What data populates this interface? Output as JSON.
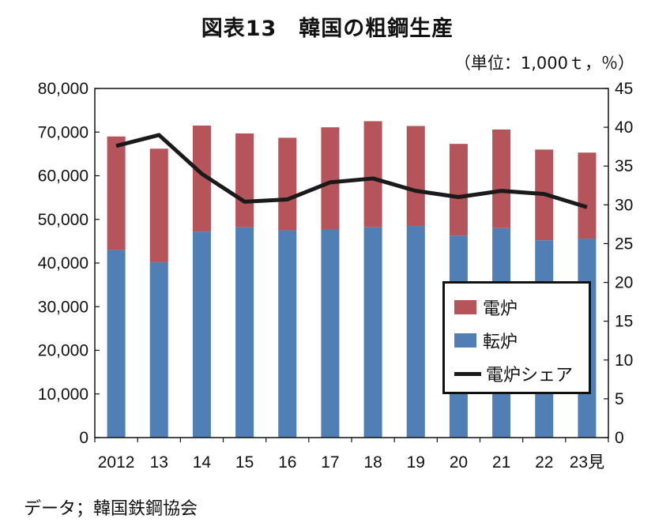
{
  "title": "図表13　韓国の粗鋼生産",
  "unit": "（単位：1,000ｔ，％）",
  "source": "データ；韓国鉄鋼協会",
  "legend": {
    "electric": "電炉",
    "converter": "転炉",
    "share": "電炉シェア"
  },
  "colors": {
    "electric": "#b5545a",
    "converter": "#4f7fb5",
    "share": "#1a1a1a"
  },
  "chart_data": {
    "type": "bar",
    "stacked": true,
    "categories": [
      "2012",
      "13",
      "14",
      "15",
      "16",
      "17",
      "18",
      "19",
      "20",
      "21",
      "22",
      "23見"
    ],
    "series": [
      {
        "name": "転炉",
        "axis": "left",
        "values": [
          43000,
          40200,
          47200,
          48200,
          47500,
          47700,
          48200,
          48500,
          46300,
          48000,
          45200,
          45600
        ]
      },
      {
        "name": "電炉",
        "axis": "left",
        "values": [
          26000,
          26000,
          24300,
          21500,
          21200,
          23400,
          24300,
          22900,
          21000,
          22600,
          20800,
          19700
        ]
      },
      {
        "name": "電炉シェア",
        "type": "line",
        "axis": "right",
        "values": [
          37.6,
          39.0,
          34.0,
          30.4,
          30.7,
          32.9,
          33.4,
          31.8,
          31.0,
          31.8,
          31.4,
          29.7
        ]
      }
    ],
    "y_left": {
      "min": 0,
      "max": 80000,
      "step": 10000,
      "ticks": [
        "0",
        "10,000",
        "20,000",
        "30,000",
        "40,000",
        "50,000",
        "60,000",
        "70,000",
        "80,000"
      ]
    },
    "y_right": {
      "min": 0,
      "max": 45,
      "step": 5,
      "ticks": [
        "0",
        "5",
        "10",
        "15",
        "20",
        "25",
        "30",
        "35",
        "40",
        "45"
      ]
    },
    "grid": false,
    "legend_position": "bottom-right"
  }
}
